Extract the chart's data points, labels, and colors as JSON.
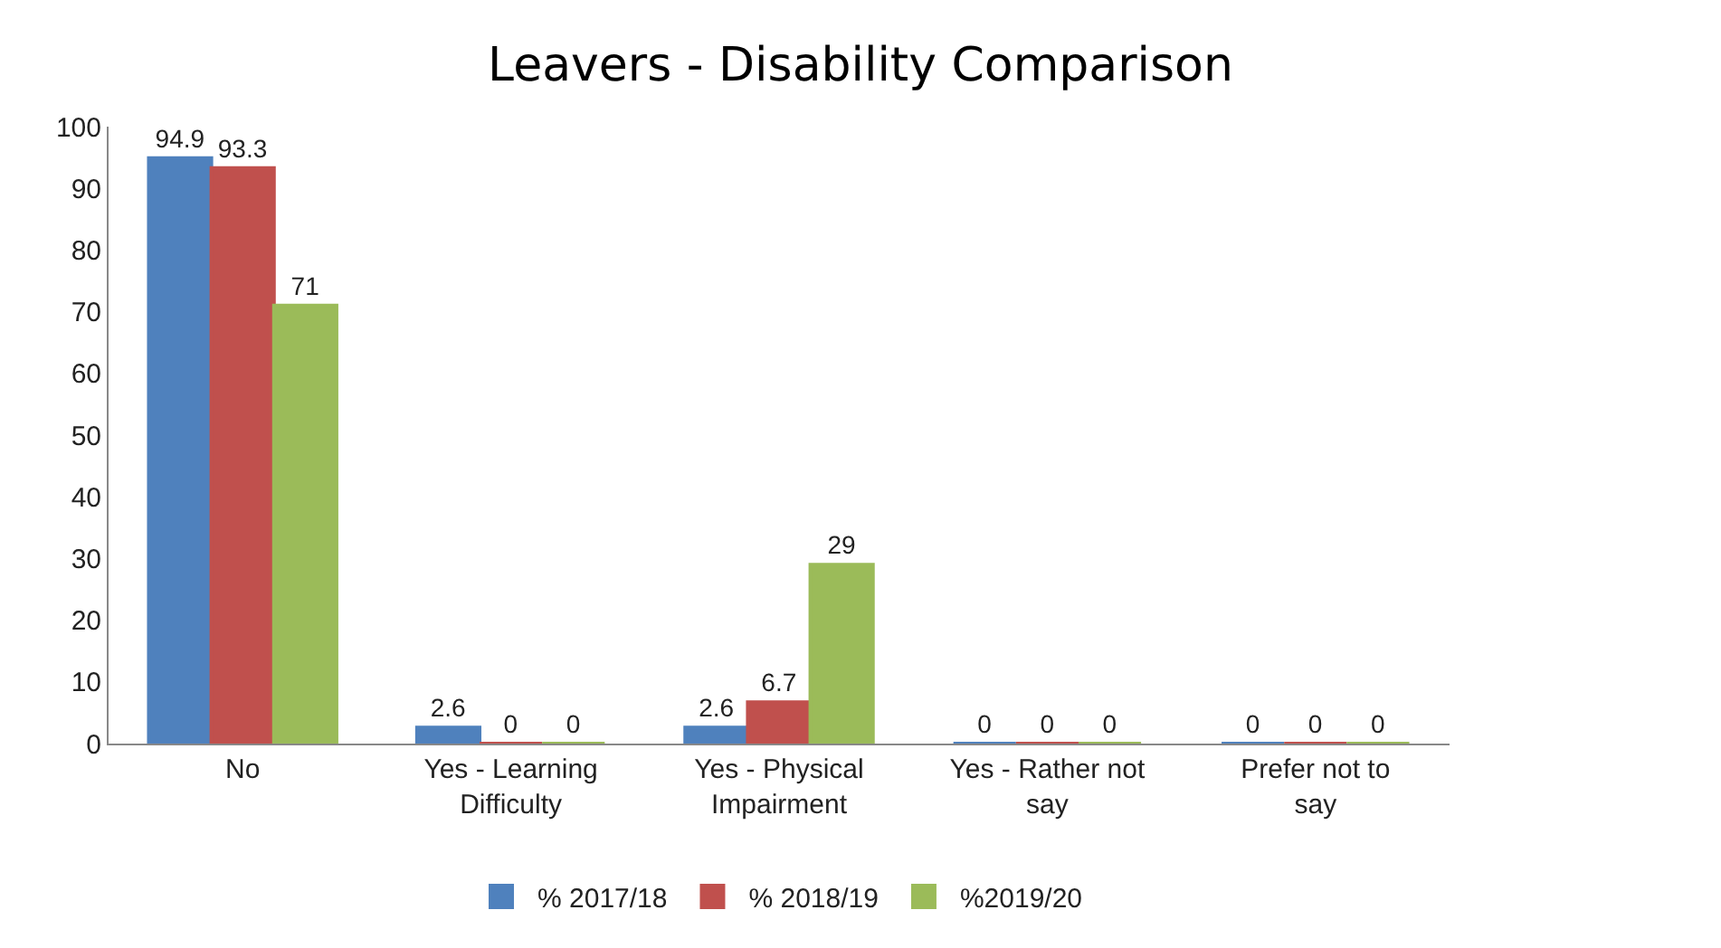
{
  "chart_data": {
    "type": "bar",
    "title": "Leavers - Disability Comparison",
    "categories": [
      "No",
      "Yes - Learning Difficulty",
      "Yes - Physical Impairment",
      "Yes - Rather not say",
      "Prefer not to say"
    ],
    "series": [
      {
        "name": "% 2017/18",
        "color": "#4f81bd",
        "values": [
          94.9,
          2.6,
          2.6,
          0,
          0
        ]
      },
      {
        "name": "% 2018/19",
        "color": "#c0504d",
        "values": [
          93.3,
          0,
          6.7,
          0,
          0
        ]
      },
      {
        "name": "%2019/20",
        "color": "#9bbb59",
        "values": [
          71,
          0,
          29,
          0,
          0
        ]
      }
    ],
    "ylim": [
      0,
      100
    ],
    "yticks": [
      0,
      10,
      20,
      30,
      40,
      50,
      60,
      70,
      80,
      90,
      100
    ],
    "legend": "bottom",
    "data_labels": true
  }
}
